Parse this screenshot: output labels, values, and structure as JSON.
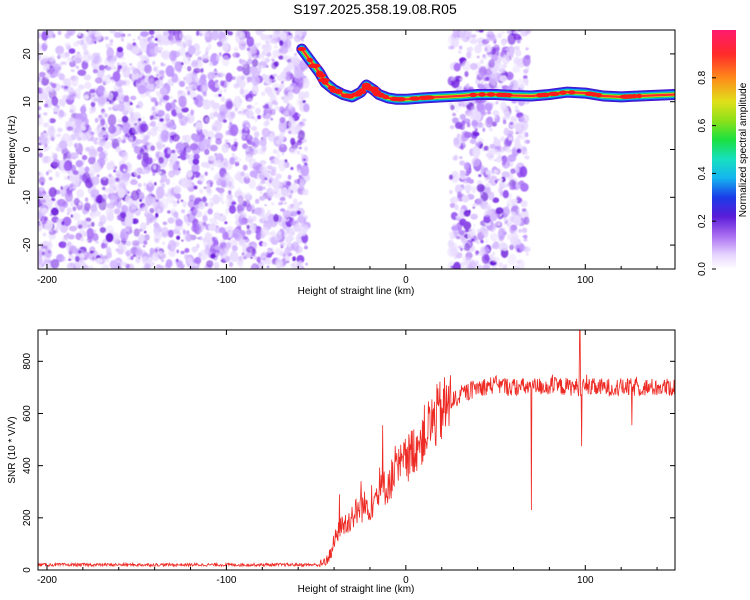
{
  "title": "S197.2025.358.19.08.R05",
  "chart_data": [
    {
      "type": "heatmap",
      "name": "spectrogram",
      "xlabel": "Height of straight line (km)",
      "ylabel": "Frequency (Hz)",
      "xlim": [
        -205,
        150
      ],
      "ylim": [
        -25,
        25
      ],
      "xticks": [
        -200,
        -100,
        0,
        100
      ],
      "yticks": [
        -20,
        -10,
        0,
        10,
        20
      ],
      "colorbar": {
        "label": "Normalized spectral amplitude",
        "range": [
          0,
          1
        ],
        "ticks": [
          0.0,
          0.2,
          0.4,
          0.6,
          0.8
        ],
        "tick_labels": [
          "0.0",
          "0.2",
          "0.4",
          "0.6",
          "0.8"
        ]
      },
      "noise_regions": [
        [
          -205,
          -55
        ],
        [
          25,
          68
        ]
      ],
      "signal_ridge": {
        "x": [
          -58,
          -52,
          -48,
          -45,
          -40,
          -35,
          -30,
          -25,
          -22,
          -18,
          -15,
          -10,
          -5,
          0,
          10,
          20,
          30,
          40,
          50,
          60,
          70,
          80,
          90,
          100,
          110,
          120,
          130,
          150
        ],
        "y": [
          21,
          18,
          16,
          14,
          12.5,
          11.5,
          11,
          12,
          13.5,
          12.5,
          11.5,
          10.8,
          10.5,
          10.5,
          10.8,
          11,
          11.2,
          11.5,
          11.5,
          11.3,
          11.2,
          11.5,
          12,
          11.8,
          11.2,
          11,
          11.2,
          11.5
        ]
      }
    },
    {
      "type": "line",
      "name": "snr",
      "xlabel": "Height of straight line (km)",
      "ylabel": "SNR (10 * V/V)",
      "xlim": [
        -205,
        150
      ],
      "ylim": [
        0,
        920
      ],
      "xticks": [
        -200,
        -100,
        0,
        100
      ],
      "yticks": [
        0,
        200,
        400,
        600,
        800
      ],
      "color": "#ee2a24",
      "envelope": {
        "x": [
          -205,
          -60,
          -47,
          -42,
          -38,
          -32,
          -25,
          -20,
          -15,
          -10,
          -5,
          0,
          5,
          10,
          15,
          20,
          25,
          30,
          40,
          50,
          60,
          80,
          100,
          120,
          150
        ],
        "y": [
          20,
          20,
          20,
          60,
          150,
          190,
          240,
          250,
          290,
          330,
          380,
          420,
          470,
          520,
          570,
          610,
          640,
          670,
          700,
          710,
          700,
          705,
          700,
          700,
          700
        ]
      },
      "spikes": [
        {
          "x": -37,
          "y": 290
        },
        {
          "x": -25,
          "y": 340
        },
        {
          "x": -13,
          "y": 555
        },
        {
          "x": 70,
          "y": 230
        },
        {
          "x": 97,
          "y": 920
        },
        {
          "x": 98,
          "y": 475
        },
        {
          "x": 126,
          "y": 555
        }
      ]
    }
  ]
}
